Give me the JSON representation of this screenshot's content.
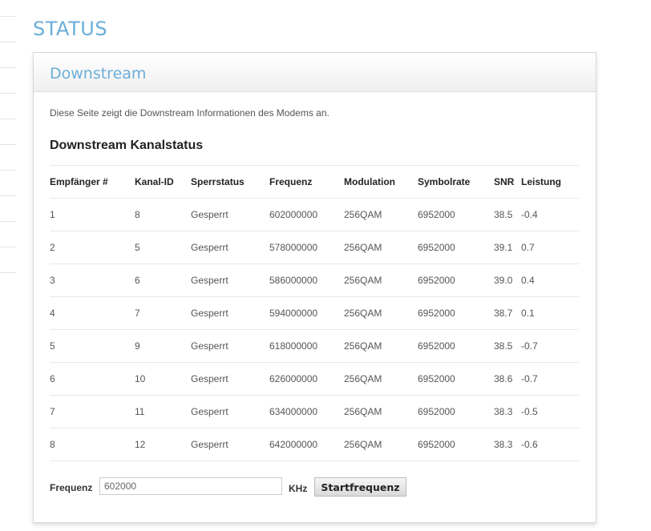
{
  "page_title": "STATUS",
  "panel": {
    "title": "Downstream",
    "description": "Diese Seite zeigt die Downstream Informationen des Modems an.",
    "section_title": "Downstream Kanalstatus"
  },
  "table": {
    "headers": [
      "Empfänger #",
      "Kanal-ID",
      "Sperrstatus",
      "Frequenz",
      "Modulation",
      "Symbolrate",
      "SNR",
      "Leistung"
    ],
    "rows": [
      [
        "1",
        "8",
        "Gesperrt",
        "602000000",
        "256QAM",
        "6952000",
        "38.5",
        "-0.4"
      ],
      [
        "2",
        "5",
        "Gesperrt",
        "578000000",
        "256QAM",
        "6952000",
        "39.1",
        "0.7"
      ],
      [
        "3",
        "6",
        "Gesperrt",
        "586000000",
        "256QAM",
        "6952000",
        "39.0",
        "0.4"
      ],
      [
        "4",
        "7",
        "Gesperrt",
        "594000000",
        "256QAM",
        "6952000",
        "38.7",
        "0.1"
      ],
      [
        "5",
        "9",
        "Gesperrt",
        "618000000",
        "256QAM",
        "6952000",
        "38.5",
        "-0.7"
      ],
      [
        "6",
        "10",
        "Gesperrt",
        "626000000",
        "256QAM",
        "6952000",
        "38.6",
        "-0.7"
      ],
      [
        "7",
        "11",
        "Gesperrt",
        "634000000",
        "256QAM",
        "6952000",
        "38.3",
        "-0.5"
      ],
      [
        "8",
        "12",
        "Gesperrt",
        "642000000",
        "256QAM",
        "6952000",
        "38.3",
        "-0.6"
      ]
    ]
  },
  "form": {
    "label": "Frequenz",
    "value": "602000",
    "unit": "KHz",
    "button": "Startfrequenz"
  },
  "colors": {
    "accent": "#6aaed9"
  }
}
